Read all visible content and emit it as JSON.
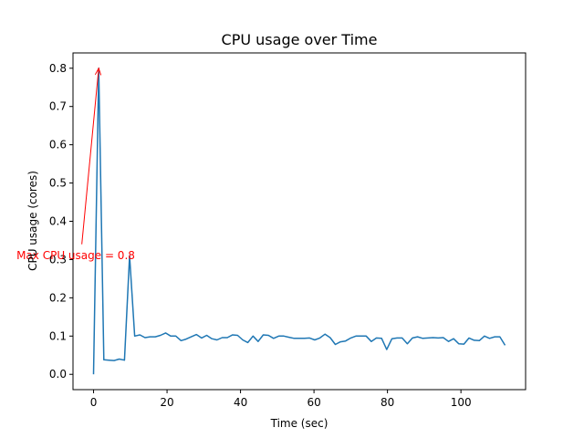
{
  "chart_data": {
    "type": "line",
    "title": "CPU usage over Time",
    "xlabel": "Time (sec)",
    "ylabel": "CPU usage (cores)",
    "xlim": [
      -5.6,
      117.6
    ],
    "ylim": [
      -0.04,
      0.84
    ],
    "xticks": [
      0,
      20,
      40,
      60,
      80,
      100
    ],
    "yticks": [
      0.0,
      0.1,
      0.2,
      0.3,
      0.4,
      0.5,
      0.6,
      0.7,
      0.8
    ],
    "xtick_labels": [
      "0",
      "20",
      "40",
      "60",
      "80",
      "100"
    ],
    "ytick_labels": [
      "0.0",
      "0.1",
      "0.2",
      "0.3",
      "0.4",
      "0.5",
      "0.6",
      "0.7",
      "0.8"
    ],
    "grid": false,
    "series": [
      {
        "color": "#1f77b4",
        "x": [
          0,
          1.4,
          2.8,
          4.2,
          5.6,
          7,
          8.4,
          9.8,
          11.2,
          12.6,
          14,
          15.4,
          16.8,
          18.2,
          19.6,
          21,
          22.4,
          23.8,
          25.2,
          26.6,
          28,
          29.4,
          30.8,
          32.2,
          33.6,
          35,
          36.4,
          37.8,
          39.2,
          40.6,
          42,
          43.4,
          44.8,
          46.2,
          47.6,
          49,
          50.4,
          51.8,
          53.2,
          54.6,
          56,
          57.4,
          58.8,
          60.2,
          61.6,
          63,
          64.4,
          65.8,
          67.2,
          68.6,
          70,
          71.4,
          72.8,
          74.2,
          75.6,
          77,
          78.4,
          79.8,
          81.2,
          82.6,
          84,
          85.4,
          86.8,
          88.2,
          89.6,
          91,
          92.4,
          93.8,
          95.2,
          96.6,
          98,
          99.4,
          100.8,
          102.2,
          103.6,
          105,
          106.4,
          107.8,
          109.2,
          110.6,
          112
        ],
        "y": [
          0.0,
          0.8,
          0.038,
          0.037,
          0.036,
          0.04,
          0.037,
          0.31,
          0.1,
          0.103,
          0.096,
          0.098,
          0.098,
          0.102,
          0.108,
          0.1,
          0.1,
          0.088,
          0.092,
          0.098,
          0.104,
          0.095,
          0.102,
          0.093,
          0.09,
          0.096,
          0.096,
          0.103,
          0.102,
          0.09,
          0.083,
          0.1,
          0.086,
          0.103,
          0.102,
          0.094,
          0.1,
          0.1,
          0.097,
          0.094,
          0.094,
          0.094,
          0.095,
          0.09,
          0.095,
          0.105,
          0.096,
          0.078,
          0.085,
          0.087,
          0.095,
          0.1,
          0.1,
          0.1,
          0.086,
          0.095,
          0.094,
          0.065,
          0.093,
          0.095,
          0.095,
          0.08,
          0.095,
          0.098,
          0.094,
          0.095,
          0.096,
          0.095,
          0.096,
          0.086,
          0.093,
          0.08,
          0.079,
          0.095,
          0.089,
          0.088,
          0.1,
          0.094,
          0.098,
          0.098,
          0.076
        ]
      }
    ],
    "annotation": {
      "text": "Max CPU usage = 0.8",
      "color": "#ff0000",
      "arrow_tail": [
        -3.2,
        0.34
      ],
      "arrow_head": [
        1.4,
        0.8
      ]
    }
  }
}
